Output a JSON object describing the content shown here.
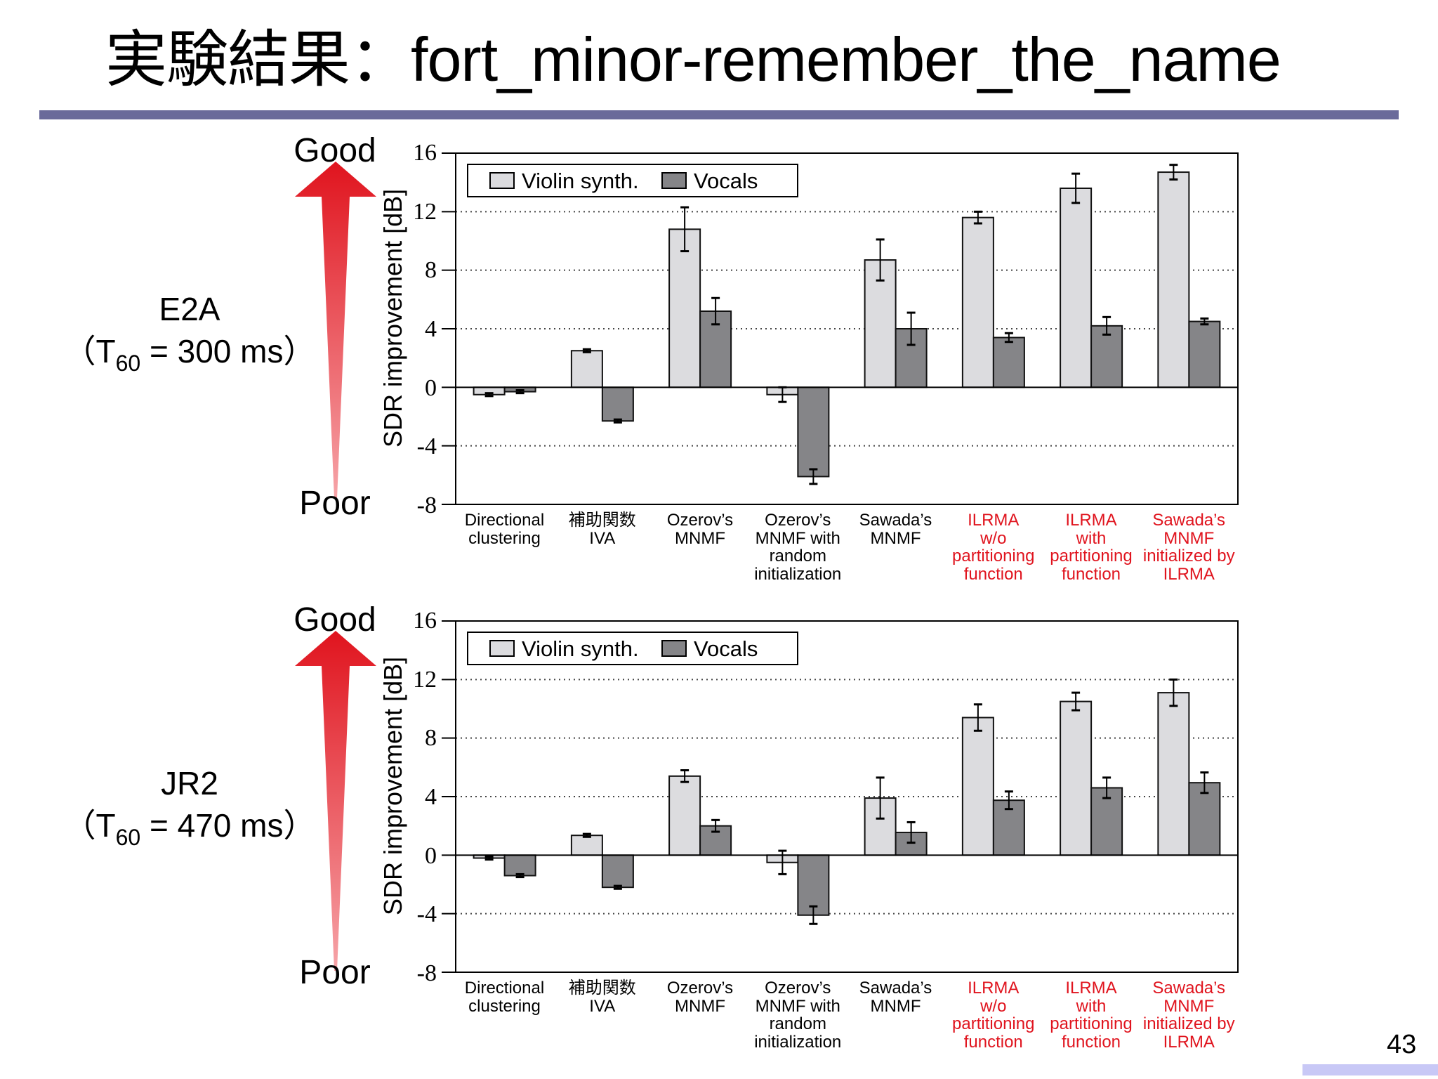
{
  "slide": {
    "title": "実験結果：fort_minor-remember_the_name",
    "page_number": "43",
    "colors": {
      "title_rule": "#6a6a9a",
      "arrow_red": "#e0141e",
      "violin_bar": "#dcdcdf",
      "vocals_bar": "#858588",
      "proposed_label": "#e0141e",
      "page_bar": "#c8c8f6"
    }
  },
  "panels": [
    {
      "condition": "E2A",
      "t60_prefix": "（T",
      "t60_sub": "60",
      "t60_suffix": " = 300 ms）",
      "good_label": "Good",
      "poor_label": "Poor"
    },
    {
      "condition": "JR2",
      "t60_prefix": "（T",
      "t60_sub": "60",
      "t60_suffix": " = 470 ms）",
      "good_label": "Good",
      "poor_label": "Poor"
    }
  ],
  "legend": {
    "violin": "Violin synth.",
    "vocals": "Vocals"
  },
  "ylabel": "SDR improvement [dB]",
  "yticks": [
    "16",
    "12",
    "8",
    "4",
    "0",
    "-4",
    "-8"
  ],
  "xlabels": [
    {
      "lines": [
        "Directional",
        "clustering"
      ],
      "proposed": false
    },
    {
      "lines": [
        "補助関数",
        "IVA"
      ],
      "proposed": false
    },
    {
      "lines": [
        "Ozerov’s",
        "MNMF"
      ],
      "proposed": false
    },
    {
      "lines": [
        "Ozerov’s",
        "MNMF with",
        "random",
        "initialization"
      ],
      "proposed": false
    },
    {
      "lines": [
        "Sawada’s",
        "MNMF"
      ],
      "proposed": false
    },
    {
      "lines": [
        "ILRMA",
        "w/o",
        "partitioning",
        "function"
      ],
      "proposed": true
    },
    {
      "lines": [
        "ILRMA",
        "with",
        "partitioning",
        "function"
      ],
      "proposed": true
    },
    {
      "lines": [
        "Sawada’s",
        "MNMF",
        "initialized by",
        "ILRMA"
      ],
      "proposed": true
    }
  ],
  "chart_data": [
    {
      "type": "bar",
      "title": "E2A (T60 = 300 ms)",
      "categories": [
        "Directional clustering",
        "補助関数 IVA",
        "Ozerov’s MNMF",
        "Ozerov’s MNMF with random initialization",
        "Sawada’s MNMF",
        "ILRMA w/o partitioning function",
        "ILRMA with partitioning function",
        "Sawada’s MNMF initialized by ILRMA"
      ],
      "series": [
        {
          "name": "Violin synth.",
          "values": [
            -0.5,
            2.5,
            10.8,
            -0.5,
            8.7,
            11.6,
            13.6,
            14.7
          ],
          "errors": [
            0.1,
            0.1,
            1.5,
            0.5,
            1.4,
            0.4,
            1.0,
            0.5
          ]
        },
        {
          "name": "Vocals",
          "values": [
            -0.3,
            -2.3,
            5.2,
            -6.1,
            4.0,
            3.4,
            4.2,
            4.5
          ],
          "errors": [
            0.1,
            0.1,
            0.9,
            0.5,
            1.1,
            0.3,
            0.6,
            0.2
          ]
        }
      ],
      "xlabel": "",
      "ylabel": "SDR improvement [dB]",
      "ylim": [
        -8,
        16
      ],
      "yticks": [
        -8,
        -4,
        0,
        4,
        8,
        12,
        16
      ],
      "grid": "horizontal dotted",
      "legend_position": "upper left"
    },
    {
      "type": "bar",
      "title": "JR2 (T60 = 470 ms)",
      "categories": [
        "Directional clustering",
        "補助関数 IVA",
        "Ozerov’s MNMF",
        "Ozerov’s MNMF with random initialization",
        "Sawada’s MNMF",
        "ILRMA w/o partitioning function",
        "ILRMA with partitioning function",
        "Sawada’s MNMF initialized by ILRMA"
      ],
      "series": [
        {
          "name": "Violin synth.",
          "values": [
            -0.2,
            1.35,
            5.4,
            -0.5,
            3.9,
            9.4,
            10.5,
            11.1
          ],
          "errors": [
            0.1,
            0.1,
            0.4,
            0.8,
            1.4,
            0.9,
            0.6,
            0.9
          ]
        },
        {
          "name": "Vocals",
          "values": [
            -1.4,
            -2.2,
            2.0,
            -4.1,
            1.55,
            3.75,
            4.6,
            4.95
          ],
          "errors": [
            0.1,
            0.1,
            0.4,
            0.6,
            0.7,
            0.6,
            0.7,
            0.7
          ]
        }
      ],
      "xlabel": "",
      "ylabel": "SDR improvement [dB]",
      "ylim": [
        -8,
        16
      ],
      "yticks": [
        -8,
        -4,
        0,
        4,
        8,
        12,
        16
      ],
      "grid": "horizontal dotted",
      "legend_position": "upper left"
    }
  ]
}
